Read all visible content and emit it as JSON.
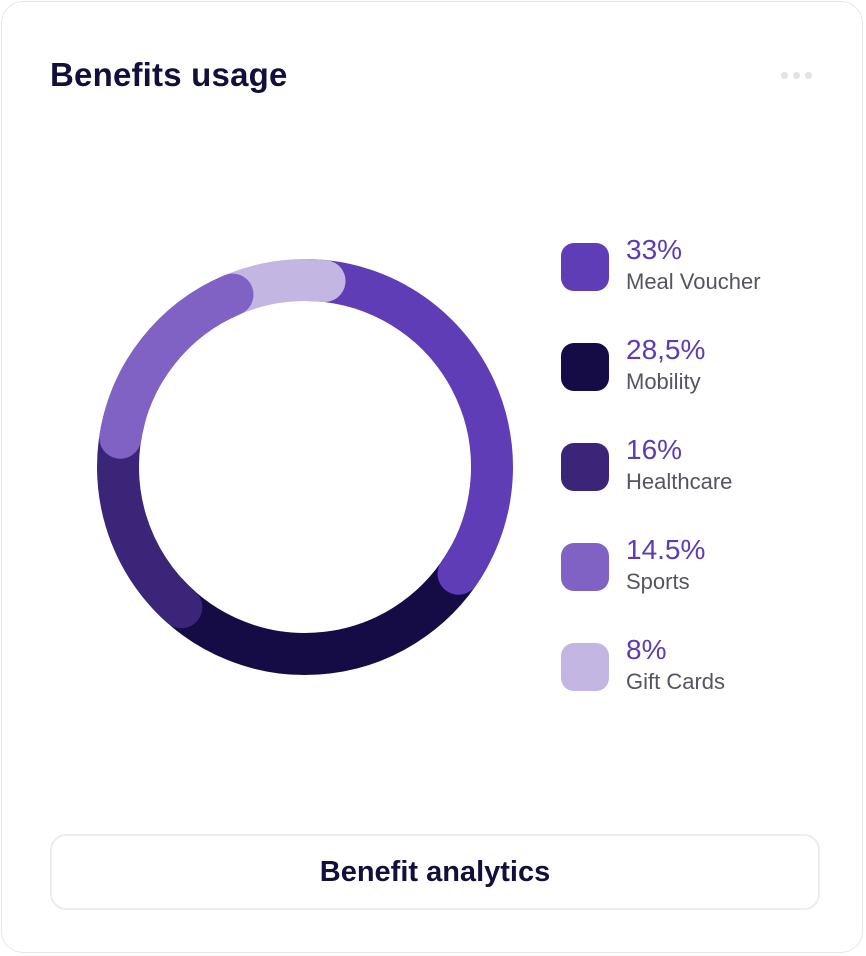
{
  "card": {
    "title": "Benefits usage",
    "menu_icon": "more-horizontal-icon",
    "button_label": "Benefit analytics"
  },
  "chart_data": {
    "type": "pie",
    "variant": "donut",
    "title": "",
    "legend_position": "right",
    "series": [
      {
        "name": "Meal Voucher",
        "label": "33%",
        "value": 33,
        "color": "#5f3db6"
      },
      {
        "name": "Mobility",
        "label": "28,5%",
        "value": 28.5,
        "color": "#150c45"
      },
      {
        "name": "Healthcare",
        "label": "16%",
        "value": 16,
        "color": "#3b2579"
      },
      {
        "name": "Sports",
        "label": "14.5%",
        "value": 14.5,
        "color": "#7f62c4"
      },
      {
        "name": "Gift Cards",
        "label": "8%",
        "value": 8,
        "color": "#c3b6e3"
      }
    ],
    "draw_order": [
      "Mobility",
      "Meal Voucher",
      "Gift Cards",
      "Healthcare",
      "Sports"
    ]
  }
}
